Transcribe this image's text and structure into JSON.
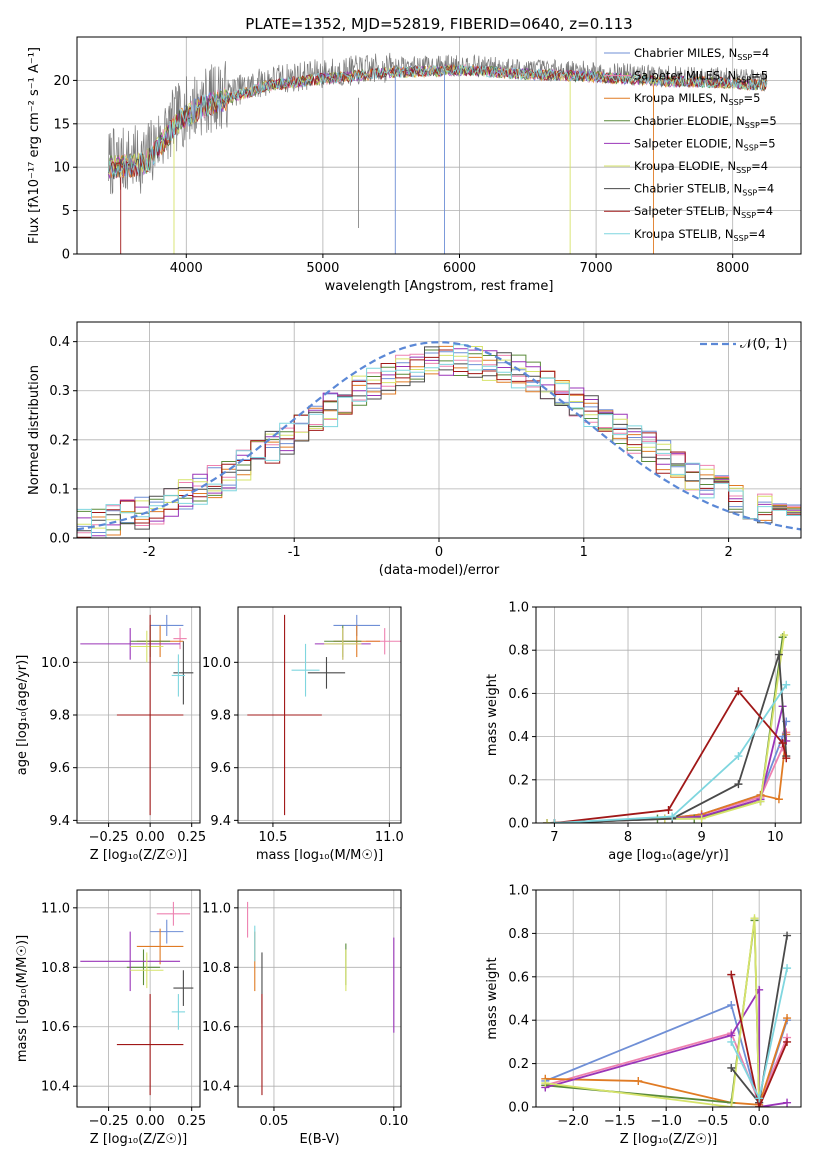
{
  "colors": {
    "chabrier_miles": "#6f8fd6",
    "salpeter_miles": "#ee82b0",
    "kroupa_miles": "#e07b24",
    "chabrier_elodie": "#5a8a3a",
    "salpeter_elodie": "#9a34b8",
    "kroupa_elodie": "#d6e36a",
    "chabrier_stelib": "#4a4a4a",
    "salpeter_stelib": "#a01818",
    "kroupa_stelib": "#7fd6df",
    "normal_curve": "#5b88d6"
  },
  "chart_data": [
    {
      "id": "spectrum",
      "type": "line",
      "title": "PLATE=1352, MJD=52819, FIBERID=0640, z=0.113",
      "xlabel": "wavelength [Angstrom, rest frame]",
      "ylabel": "Flux [fλ10⁻¹⁷ erg cm⁻² s⁻¹ A⁻¹]",
      "xlim": [
        3200,
        8500
      ],
      "ylim": [
        0,
        25
      ],
      "xticks": [
        4000,
        5000,
        6000,
        7000,
        8000
      ],
      "yticks": [
        0,
        5,
        10,
        15,
        20
      ],
      "data_x_range": [
        3430,
        8250
      ],
      "continuum": [
        [
          3430,
          10.5
        ],
        [
          3700,
          11
        ],
        [
          3800,
          13
        ],
        [
          3950,
          16
        ],
        [
          4100,
          17.5
        ],
        [
          4300,
          18.5
        ],
        [
          4600,
          20
        ],
        [
          5000,
          20.8
        ],
        [
          5500,
          21.5
        ],
        [
          6000,
          21.8
        ],
        [
          6500,
          21.3
        ],
        [
          7000,
          21
        ],
        [
          7500,
          20.5
        ],
        [
          8000,
          20.3
        ],
        [
          8250,
          20
        ]
      ],
      "legend": [
        {
          "label": "Chabrier MILES, N",
          "sub": "SSP",
          "suffix": "=4"
        },
        {
          "label": "Salpeter MILES, N",
          "sub": "SSP",
          "suffix": "=5"
        },
        {
          "label": "Kroupa MILES, N",
          "sub": "SSP",
          "suffix": "=5"
        },
        {
          "label": "Chabrier ELODIE, N",
          "sub": "SSP",
          "suffix": "=5"
        },
        {
          "label": "Salpeter ELODIE, N",
          "sub": "SSP",
          "suffix": "=5"
        },
        {
          "label": "Kroupa ELODIE, N",
          "sub": "SSP",
          "suffix": "=4"
        },
        {
          "label": "Chabrier STELIB, N",
          "sub": "SSP",
          "suffix": "=4"
        },
        {
          "label": "Salpeter STELIB, N",
          "sub": "SSP",
          "suffix": "=4"
        },
        {
          "label": "Kroupa STELIB, N",
          "sub": "SSP",
          "suffix": "=4"
        }
      ]
    },
    {
      "id": "residuals",
      "type": "histogram",
      "xlabel": "(data-model)/error",
      "ylabel": "Normed distribution",
      "xlim": [
        -2.5,
        2.5
      ],
      "ylim": [
        0,
        0.44
      ],
      "xticks": [
        -2,
        -1,
        0,
        1,
        2
      ],
      "yticks": [
        0.0,
        0.1,
        0.2,
        0.3,
        0.4
      ],
      "legend": "𝒩(0, 1)",
      "legend_position": "upper right"
    },
    {
      "id": "age_vs_Z",
      "type": "errorbar",
      "xlabel": "Z [log₁₀(Z/Z☉)]",
      "ylabel": "age  [log₁₀(age/yr)]",
      "xlim": [
        -0.44,
        0.3
      ],
      "ylim": [
        9.39,
        10.21
      ],
      "xticks": [
        -0.25,
        0.0,
        0.25
      ],
      "xticklabels": [
        "−0.25",
        "0.00",
        "0.25"
      ],
      "yticks": [
        9.4,
        9.6,
        9.8,
        10.0
      ],
      "points": [
        {
          "model": "chabrier_miles",
          "x": 0.1,
          "xerr": 0.1,
          "y": 10.14,
          "yerr": 0.04
        },
        {
          "model": "salpeter_miles",
          "x": 0.18,
          "xerr": 0.04,
          "y": 10.09,
          "yerr": 0.04
        },
        {
          "model": "kroupa_miles",
          "x": 0.06,
          "xerr": 0.14,
          "y": 10.08,
          "yerr": 0.06
        },
        {
          "model": "chabrier_elodie",
          "x": 0.0,
          "xerr": 0.12,
          "y": 10.08,
          "yerr": 0.06
        },
        {
          "model": "salpeter_elodie",
          "x": -0.12,
          "xerr": 0.3,
          "y": 10.07,
          "yerr": 0.06
        },
        {
          "model": "kroupa_elodie",
          "x": -0.02,
          "xerr": 0.1,
          "y": 10.06,
          "yerr": 0.06
        },
        {
          "model": "chabrier_stelib",
          "x": 0.2,
          "xerr": 0.06,
          "y": 9.96,
          "yerr": 0.12
        },
        {
          "model": "salpeter_stelib",
          "x": 0.0,
          "xerr": 0.2,
          "y": 9.8,
          "yerr": 0.38
        },
        {
          "model": "kroupa_stelib",
          "x": 0.17,
          "xerr": 0.04,
          "y": 9.95,
          "yerr": 0.08
        }
      ]
    },
    {
      "id": "age_vs_mass",
      "type": "errorbar",
      "xlabel": "mass [log₁₀(M/M☉)]",
      "ylabel": "",
      "xlim": [
        10.35,
        11.05
      ],
      "ylim": [
        9.39,
        10.21
      ],
      "xticks": [
        10.5,
        11.0
      ],
      "xticklabels": [
        "10.5",
        "11.0"
      ],
      "yticks": [
        9.4,
        9.6,
        9.8,
        10.0
      ],
      "points": [
        {
          "model": "chabrier_miles",
          "x": 10.86,
          "xerr": 0.1,
          "y": 10.14,
          "yerr": 0.04
        },
        {
          "model": "salpeter_miles",
          "x": 10.98,
          "xerr": 0.08,
          "y": 10.08,
          "yerr": 0.05
        },
        {
          "model": "kroupa_miles",
          "x": 10.86,
          "xerr": 0.1,
          "y": 10.08,
          "yerr": 0.06
        },
        {
          "model": "chabrier_elodie",
          "x": 10.8,
          "xerr": 0.08,
          "y": 10.08,
          "yerr": 0.06
        },
        {
          "model": "salpeter_elodie",
          "x": 10.8,
          "xerr": 0.12,
          "y": 10.07,
          "yerr": 0.06
        },
        {
          "model": "kroupa_elodie",
          "x": 10.8,
          "xerr": 0.08,
          "y": 10.07,
          "yerr": 0.06
        },
        {
          "model": "chabrier_stelib",
          "x": 10.73,
          "xerr": 0.08,
          "y": 9.96,
          "yerr": 0.06
        },
        {
          "model": "salpeter_stelib",
          "x": 10.55,
          "xerr": 0.16,
          "y": 9.8,
          "yerr": 0.38
        },
        {
          "model": "kroupa_stelib",
          "x": 10.64,
          "xerr": 0.06,
          "y": 9.97,
          "yerr": 0.1
        }
      ]
    },
    {
      "id": "weight_vs_age",
      "type": "line",
      "xlabel": "age  [log₁₀(age/yr)]",
      "ylabel": "mass weight",
      "xlim": [
        6.75,
        10.35
      ],
      "ylim": [
        0,
        1
      ],
      "xticks": [
        7,
        8,
        9,
        10
      ],
      "yticks": [
        0.0,
        0.2,
        0.4,
        0.6,
        0.8,
        1.0
      ],
      "series": [
        {
          "model": "chabrier_miles",
          "points": [
            [
              7.0,
              0.0
            ],
            [
              8.5,
              0.02
            ],
            [
              9.0,
              0.04
            ],
            [
              9.8,
              0.13
            ],
            [
              10.1,
              0.4
            ],
            [
              10.15,
              0.47
            ]
          ]
        },
        {
          "model": "salpeter_miles",
          "points": [
            [
              7.0,
              0.0
            ],
            [
              8.5,
              0.02
            ],
            [
              9.0,
              0.04
            ],
            [
              9.8,
              0.12
            ],
            [
              10.1,
              0.35
            ],
            [
              10.15,
              0.42
            ]
          ]
        },
        {
          "model": "kroupa_miles",
          "points": [
            [
              7.0,
              0.0
            ],
            [
              8.5,
              0.02
            ],
            [
              9.0,
              0.04
            ],
            [
              9.8,
              0.13
            ],
            [
              10.05,
              0.11
            ],
            [
              10.15,
              0.41
            ]
          ]
        },
        {
          "model": "chabrier_elodie",
          "points": [
            [
              6.9,
              0.0
            ],
            [
              8.4,
              0.02
            ],
            [
              8.9,
              0.02
            ],
            [
              9.8,
              0.1
            ],
            [
              10.1,
              0.86
            ]
          ]
        },
        {
          "model": "salpeter_elodie",
          "points": [
            [
              6.9,
              0.0
            ],
            [
              8.5,
              0.02
            ],
            [
              9.0,
              0.03
            ],
            [
              9.8,
              0.11
            ],
            [
              10.1,
              0.54
            ],
            [
              10.15,
              0.38
            ]
          ]
        },
        {
          "model": "kroupa_elodie",
          "points": [
            [
              6.9,
              0.0
            ],
            [
              8.5,
              0.02
            ],
            [
              9.0,
              0.02
            ],
            [
              9.8,
              0.1
            ],
            [
              10.12,
              0.87
            ]
          ]
        },
        {
          "model": "chabrier_stelib",
          "points": [
            [
              7.0,
              0.0
            ],
            [
              8.6,
              0.02
            ],
            [
              9.5,
              0.18
            ],
            [
              10.05,
              0.78
            ],
            [
              10.15,
              0.31
            ]
          ]
        },
        {
          "model": "salpeter_stelib",
          "points": [
            [
              7.0,
              0.0
            ],
            [
              8.55,
              0.06
            ],
            [
              9.5,
              0.61
            ],
            [
              10.1,
              0.37
            ],
            [
              10.15,
              0.3
            ]
          ]
        },
        {
          "model": "kroupa_stelib",
          "points": [
            [
              7.0,
              0.0
            ],
            [
              8.6,
              0.03
            ],
            [
              9.5,
              0.31
            ],
            [
              10.15,
              0.64
            ]
          ]
        }
      ]
    },
    {
      "id": "mass_vs_Z",
      "type": "errorbar",
      "xlabel": "Z [log₁₀(Z/Z☉)]",
      "ylabel": "mass [log₁₀(M/M☉)]",
      "xlim": [
        -0.44,
        0.3
      ],
      "ylim": [
        10.33,
        11.06
      ],
      "xticks": [
        -0.25,
        0.0,
        0.25
      ],
      "xticklabels": [
        "−0.25",
        "0.00",
        "0.25"
      ],
      "yticks": [
        10.4,
        10.6,
        10.8,
        11.0
      ],
      "points": [
        {
          "model": "chabrier_miles",
          "x": 0.1,
          "xerr": 0.1,
          "y": 10.92,
          "yerr": 0.04
        },
        {
          "model": "salpeter_miles",
          "x": 0.14,
          "xerr": 0.1,
          "y": 10.98,
          "yerr": 0.04
        },
        {
          "model": "kroupa_miles",
          "x": 0.06,
          "xerr": 0.14,
          "y": 10.87,
          "yerr": 0.06
        },
        {
          "model": "chabrier_elodie",
          "x": -0.04,
          "xerr": 0.1,
          "y": 10.8,
          "yerr": 0.06
        },
        {
          "model": "salpeter_elodie",
          "x": -0.12,
          "xerr": 0.3,
          "y": 10.82,
          "yerr": 0.1
        },
        {
          "model": "kroupa_elodie",
          "x": -0.02,
          "xerr": 0.1,
          "y": 10.79,
          "yerr": 0.06
        },
        {
          "model": "chabrier_stelib",
          "x": 0.2,
          "xerr": 0.06,
          "y": 10.73,
          "yerr": 0.06
        },
        {
          "model": "salpeter_stelib",
          "x": 0.0,
          "xerr": 0.2,
          "y": 10.54,
          "yerr": 0.17
        },
        {
          "model": "kroupa_stelib",
          "x": 0.17,
          "xerr": 0.04,
          "y": 10.65,
          "yerr": 0.06
        }
      ]
    },
    {
      "id": "mass_vs_ebv",
      "type": "errorbar",
      "xlabel": "E(B-V)",
      "ylabel": "",
      "xlim": [
        0.035,
        0.103
      ],
      "ylim": [
        10.33,
        11.06
      ],
      "xticks": [
        0.05,
        0.1
      ],
      "xticklabels": [
        "0.05",
        "0.10"
      ],
      "yticks": [
        10.4,
        10.6,
        10.8,
        11.0
      ],
      "points": [
        {
          "model": "salpeter_miles",
          "x": 0.039,
          "xerr": 0,
          "y": 10.96,
          "yerr": 0.06
        },
        {
          "model": "kroupa_miles",
          "x": 0.042,
          "xerr": 0,
          "y": 10.82,
          "yerr": 0.1
        },
        {
          "model": "kroupa_stelib",
          "x": 0.042,
          "xerr": 0,
          "y": 10.88,
          "yerr": 0.06
        },
        {
          "model": "chabrier_stelib",
          "x": 0.045,
          "xerr": 0,
          "y": 10.73,
          "yerr": 0.12
        },
        {
          "model": "salpeter_stelib",
          "x": 0.045,
          "xerr": 0,
          "y": 10.54,
          "yerr": 0.17
        },
        {
          "model": "chabrier_elodie",
          "x": 0.08,
          "xerr": 0,
          "y": 10.81,
          "yerr": 0.07
        },
        {
          "model": "kroupa_elodie",
          "x": 0.08,
          "xerr": 0,
          "y": 10.79,
          "yerr": 0.07
        },
        {
          "model": "salpeter_elodie",
          "x": 0.1,
          "xerr": 0,
          "y": 10.74,
          "yerr": 0.16
        }
      ]
    },
    {
      "id": "weight_vs_Z",
      "type": "line",
      "xlabel": "Z [log₁₀(Z/Z☉)]",
      "ylabel": "mass weight",
      "xlim": [
        -2.4,
        0.45
      ],
      "ylim": [
        0,
        1
      ],
      "xticks": [
        -2.0,
        -1.5,
        -1.0,
        -0.5,
        0.0
      ],
      "xticklabels": [
        "−2.0",
        "−1.5",
        "−1.0",
        "−0.5",
        "0.0"
      ],
      "yticks": [
        0.0,
        0.2,
        0.4,
        0.6,
        0.8,
        1.0
      ],
      "series": [
        {
          "model": "chabrier_miles",
          "points": [
            [
              -2.3,
              0.12
            ],
            [
              -0.3,
              0.47
            ],
            [
              0.0,
              0.0
            ],
            [
              0.3,
              0.4
            ]
          ]
        },
        {
          "model": "salpeter_miles",
          "points": [
            [
              -2.3,
              0.1
            ],
            [
              -0.3,
              0.34
            ],
            [
              0.0,
              0.02
            ],
            [
              0.3,
              0.32
            ]
          ]
        },
        {
          "model": "kroupa_miles",
          "points": [
            [
              -2.3,
              0.13
            ],
            [
              -1.3,
              0.12
            ],
            [
              -0.3,
              0.02
            ],
            [
              0.0,
              0.01
            ],
            [
              0.3,
              0.41
            ]
          ]
        },
        {
          "model": "chabrier_elodie",
          "points": [
            [
              -2.3,
              0.1
            ],
            [
              -0.3,
              0.02
            ],
            [
              -0.05,
              0.86
            ],
            [
              0.0,
              0.0
            ]
          ]
        },
        {
          "model": "salpeter_elodie",
          "points": [
            [
              -2.3,
              0.09
            ],
            [
              -0.3,
              0.33
            ],
            [
              0.0,
              0.54
            ],
            [
              0.0,
              0.0
            ],
            [
              0.3,
              0.02
            ]
          ]
        },
        {
          "model": "kroupa_elodie",
          "points": [
            [
              -2.3,
              0.11
            ],
            [
              -0.3,
              0.0
            ],
            [
              -0.05,
              0.87
            ],
            [
              0.0,
              0.0
            ]
          ]
        },
        {
          "model": "chabrier_stelib",
          "points": [
            [
              -0.3,
              0.18
            ],
            [
              0.0,
              0.02
            ],
            [
              0.3,
              0.79
            ]
          ]
        },
        {
          "model": "salpeter_stelib",
          "points": [
            [
              -0.3,
              0.61
            ],
            [
              0.0,
              0.0
            ],
            [
              0.3,
              0.3
            ]
          ]
        },
        {
          "model": "kroupa_stelib",
          "points": [
            [
              -0.3,
              0.3
            ],
            [
              0.0,
              0.04
            ],
            [
              0.3,
              0.64
            ]
          ]
        }
      ]
    }
  ]
}
